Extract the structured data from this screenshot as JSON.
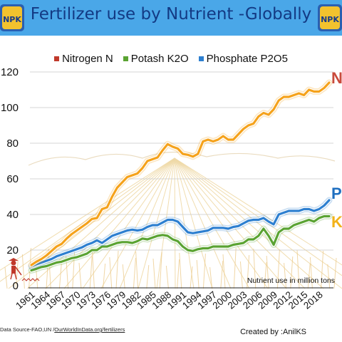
{
  "header": {
    "title": "Fertilizer use by Nutrient -Globally",
    "badge_text": "NPK"
  },
  "footer": {
    "source_prefix": "Data Source-FAO,UN /",
    "source_link": "OurWorldInData.org/fertilizers",
    "credit": "Created by :AnilKS"
  },
  "colors": {
    "banner": "#4aa7e8",
    "title": "#133a84",
    "nitrogen": "#f5a21b",
    "potash": "#5aa332",
    "phosphate": "#2d7fd0",
    "end_label_n": "#c94a3c",
    "end_label_p": "#1f6fc0",
    "end_label_k": "#f2b21a"
  },
  "chart_data": {
    "type": "line",
    "x": [
      1961,
      1962,
      1963,
      1964,
      1965,
      1966,
      1967,
      1968,
      1969,
      1970,
      1971,
      1972,
      1973,
      1974,
      1975,
      1976,
      1977,
      1978,
      1979,
      1980,
      1981,
      1982,
      1983,
      1984,
      1985,
      1986,
      1987,
      1988,
      1989,
      1990,
      1991,
      1992,
      1993,
      1994,
      1995,
      1996,
      1997,
      1998,
      1999,
      2000,
      2001,
      2002,
      2003,
      2004,
      2005,
      2006,
      2007,
      2008,
      2009,
      2010,
      2011,
      2012,
      2013,
      2014,
      2015,
      2016,
      2017,
      2018,
      2019,
      2020
    ],
    "x_ticks": [
      1961,
      1964,
      1967,
      1970,
      1973,
      1976,
      1979,
      1982,
      1985,
      1988,
      1991,
      1994,
      1997,
      2000,
      2003,
      2006,
      2009,
      2012,
      2015,
      2018
    ],
    "y_ticks": [
      0,
      20,
      40,
      60,
      80,
      100,
      120
    ],
    "ylim": [
      0,
      120
    ],
    "series": [
      {
        "name": "Nitrogen N",
        "end_label": "N",
        "values": [
          11.6,
          13.5,
          15,
          17,
          19.5,
          22,
          23.5,
          26.5,
          29,
          31,
          33,
          35,
          37.5,
          38,
          43,
          44,
          50,
          55,
          58,
          61,
          62,
          63,
          66,
          70,
          71,
          72,
          76,
          79.5,
          78,
          77,
          74,
          73.5,
          72.5,
          74,
          81,
          82,
          81,
          82,
          84,
          82,
          82,
          85,
          88,
          90,
          91,
          95,
          97,
          96,
          99,
          104,
          106,
          106,
          107,
          108,
          107,
          110,
          109,
          109,
          111,
          114
        ]
      },
      {
        "name": "Potash K2O",
        "end_label": "K",
        "values": [
          8.6,
          9.5,
          10.5,
          11,
          12,
          13,
          13.5,
          14.5,
          15.5,
          16,
          17,
          18,
          20,
          20,
          22,
          22,
          23,
          24,
          24.5,
          24.5,
          24,
          25,
          26.5,
          26,
          27,
          28,
          28.5,
          28,
          26,
          25,
          22,
          20,
          19.5,
          20.5,
          21,
          21,
          22,
          22,
          22,
          22,
          23,
          23.5,
          24,
          26,
          26,
          28,
          32,
          28,
          23,
          30,
          32,
          32,
          34,
          35,
          36,
          37,
          36,
          38,
          39,
          39
        ]
      },
      {
        "name": "Phosphate P2O5",
        "end_label": "P",
        "values": [
          10.9,
          12,
          13,
          14,
          15,
          16.5,
          17.5,
          18.5,
          19.5,
          20.5,
          21.5,
          23,
          24,
          25.5,
          24,
          26,
          28,
          29,
          30,
          31,
          31.5,
          31,
          31.5,
          33,
          34,
          34,
          35.5,
          37,
          37,
          36,
          33,
          30,
          29.5,
          30,
          30.5,
          31,
          32.5,
          32.5,
          32.5,
          32,
          33,
          33.5,
          35,
          36.5,
          37,
          37,
          38,
          36,
          34.5,
          40,
          41,
          42,
          42,
          42,
          43,
          43,
          42,
          43,
          45,
          48
        ]
      }
    ],
    "xlabel": "",
    "ylabel": "",
    "annotation": "Nutrient use in million tons",
    "legend_position": "top",
    "grid": "horizontal"
  }
}
